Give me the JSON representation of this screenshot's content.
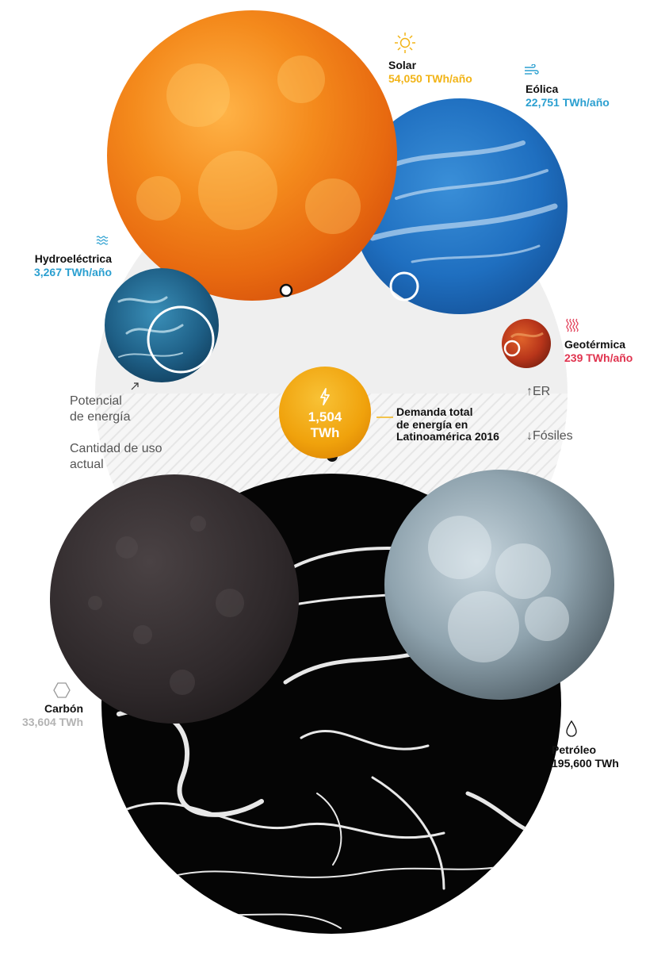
{
  "colors": {
    "solar": "#f2b417",
    "eolica": "#2a9fd0",
    "hydro": "#2a9fd0",
    "geo": "#e0344f",
    "carbon": "#b3b3b3",
    "petroleo": "#111111",
    "demand_circle": "#f1a90e"
  },
  "sources": {
    "solar": {
      "name": "Solar",
      "value": "54,050 TWh/año",
      "icon": "sun-icon"
    },
    "eolica": {
      "name": "Eólica",
      "value": "22,751 TWh/año",
      "icon": "wind-icon"
    },
    "hydro": {
      "name": "Hydroeléctrica",
      "value": "3,267 TWh/año",
      "icon": "water-icon"
    },
    "geo": {
      "name": "Geotérmica",
      "value": "239 TWh/año",
      "icon": "heat-icon"
    },
    "carbon": {
      "name": "Carbón",
      "value": "33,604 TWh",
      "icon": "hexagon-icon"
    },
    "petroleo": {
      "name": "Petróleo",
      "value": "195,600 TWh",
      "icon": "droplet-icon"
    }
  },
  "demand": {
    "value_line1": "1,504",
    "value_line2": "TWh",
    "label_lines": [
      "Demanda total",
      "de energía en",
      "Latinoamérica 2016"
    ],
    "icon": "lightning-icon"
  },
  "legend": {
    "potential_lines": [
      "Potencial",
      "de energía"
    ],
    "usage_lines": [
      "Cantidad de uso",
      "actual"
    ],
    "up_label": "ER",
    "down_label": "Fósiles",
    "up_icon": "up-arrow-icon",
    "down_icon": "down-arrow-icon"
  }
}
